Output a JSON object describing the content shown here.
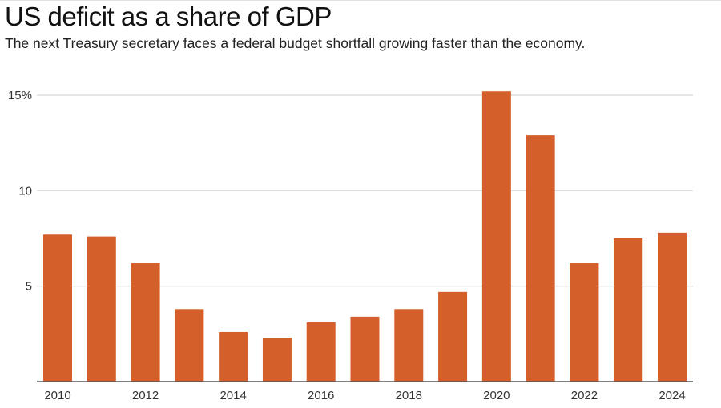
{
  "title": "US deficit as a share of GDP",
  "subtitle": "The next Treasury secretary faces a federal budget shortfall growing faster than the economy.",
  "colors": {
    "bar": "#D45F2B",
    "grid": "#d6d6d6",
    "axis": "#555555",
    "text": "#333333"
  },
  "chart_data": {
    "type": "bar",
    "title": "US deficit as a share of GDP",
    "subtitle": "The next Treasury secretary faces a federal budget shortfall growing faster than the economy.",
    "xlabel": "",
    "ylabel": "",
    "categories": [
      "2010",
      "2011",
      "2012",
      "2013",
      "2014",
      "2015",
      "2016",
      "2017",
      "2018",
      "2019",
      "2020",
      "2021",
      "2022",
      "2023",
      "2024"
    ],
    "values": [
      7.7,
      7.6,
      6.2,
      3.8,
      2.6,
      2.3,
      3.1,
      3.4,
      3.8,
      4.7,
      15.2,
      12.9,
      6.2,
      7.5,
      7.8
    ],
    "ylim": [
      0,
      15
    ],
    "yticks": [
      5,
      10,
      15
    ],
    "ytick_labels": [
      "5",
      "10",
      "15%"
    ],
    "xtick_labels": [
      "2010",
      "2012",
      "2014",
      "2016",
      "2018",
      "2020",
      "2022",
      "2024"
    ],
    "grid": true,
    "legend": "none",
    "unit": "% of GDP"
  }
}
